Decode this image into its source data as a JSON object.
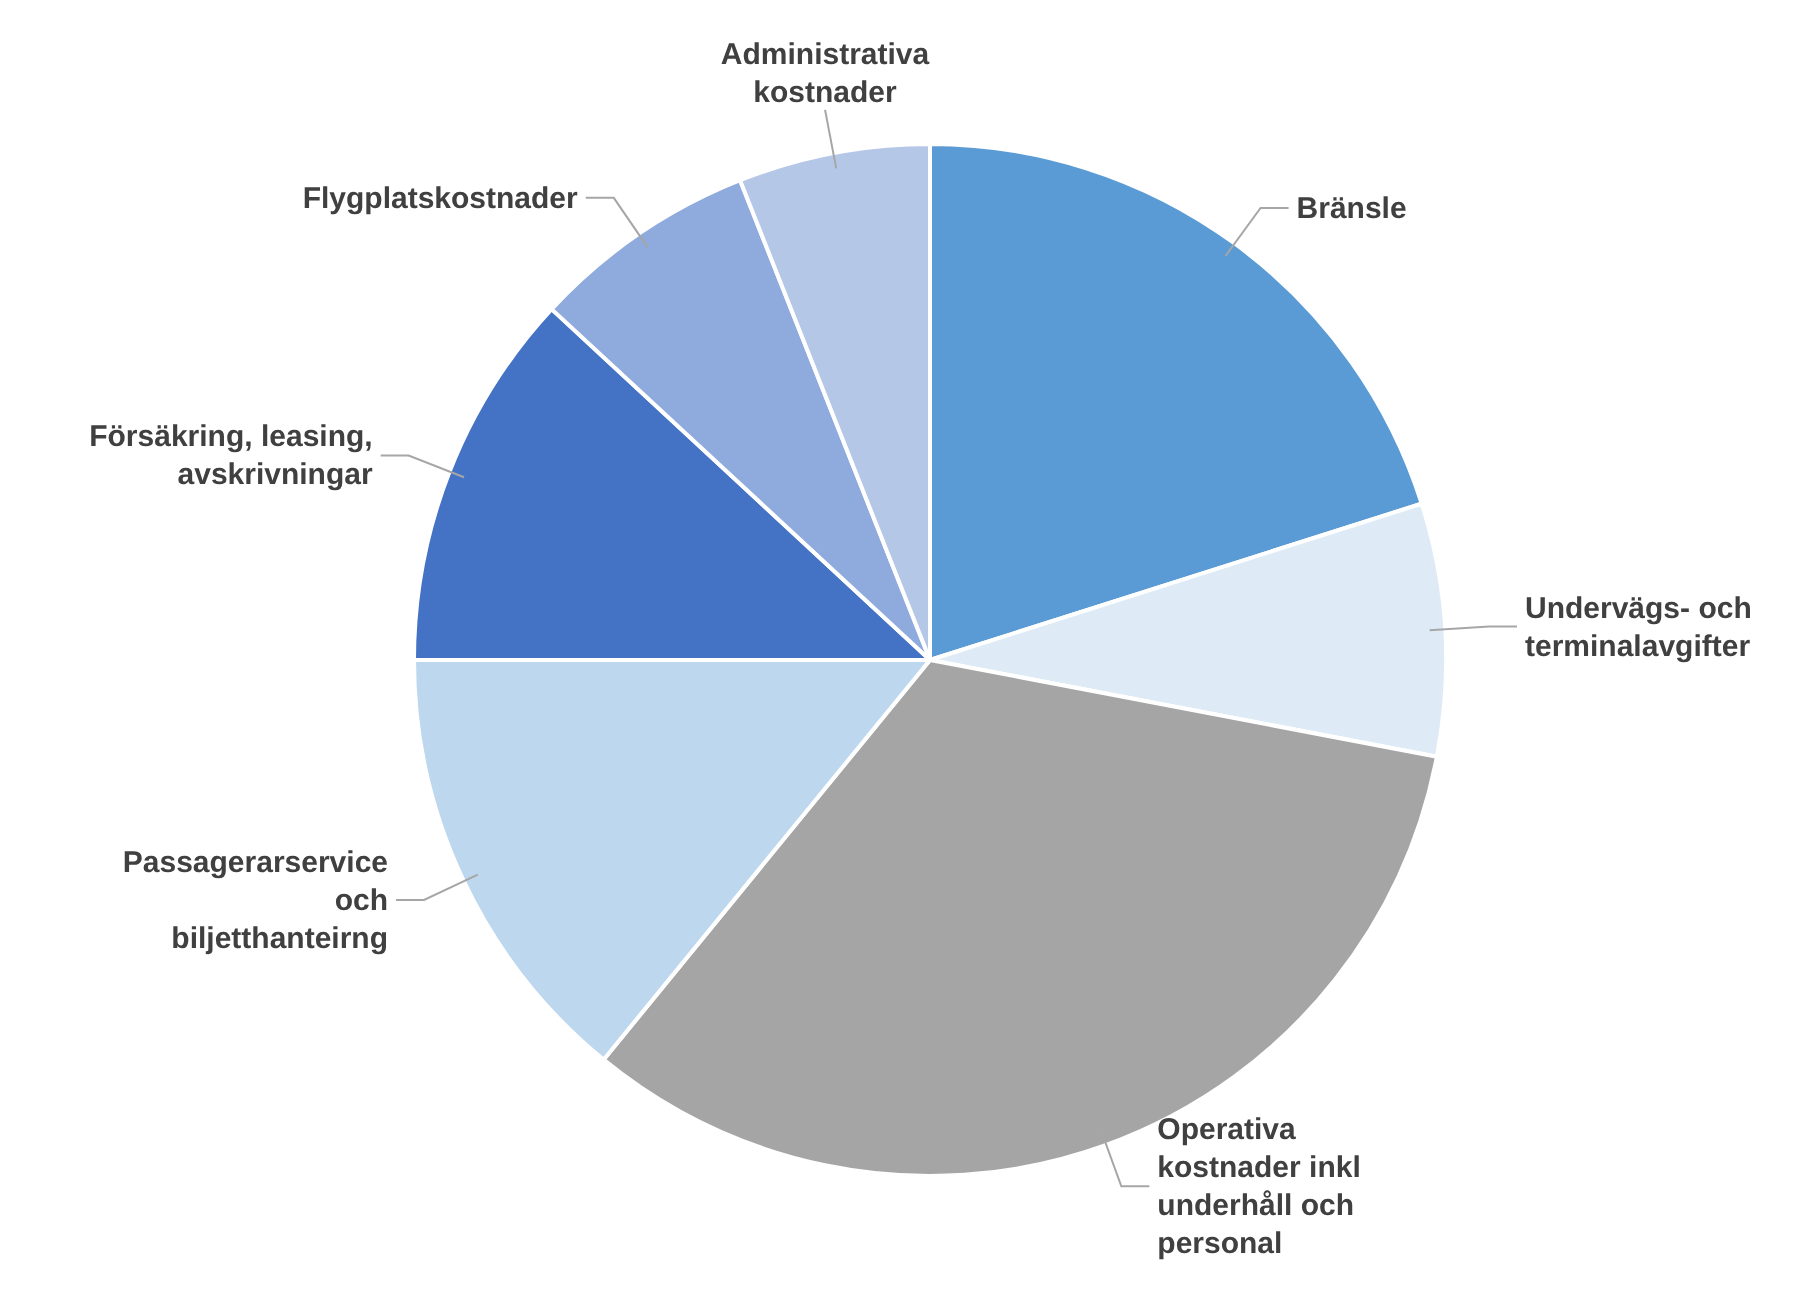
{
  "chart_data": {
    "type": "pie",
    "categories": [
      "Bränsle",
      "Undervägs- och terminalavgifter",
      "Operativa kostnader inkl underhåll och personal",
      "Passagerarservice och biljetthanteirng",
      "Försäkring, leasing, avskrivningar",
      "Flygplatskostnader",
      "Administrativa kostnader"
    ],
    "values": [
      20.1,
      7.9,
      32.9,
      14.1,
      11.9,
      7.1,
      6.0
    ],
    "colors": [
      "#5b9bd5",
      "#deebf7",
      "#a5a5a5",
      "#bdd7ee",
      "#4472c4",
      "#8faadc",
      "#b4c7e7"
    ]
  }
}
